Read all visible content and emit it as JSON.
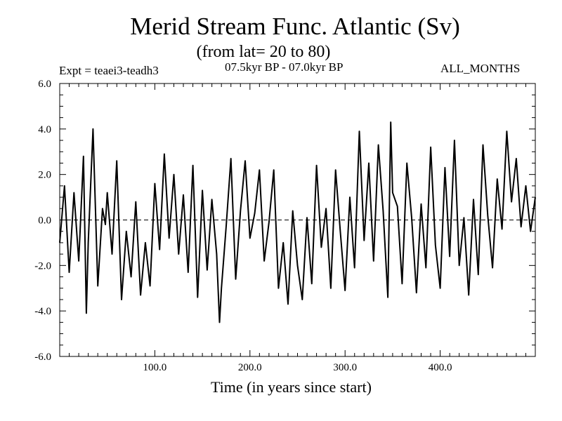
{
  "chart_data": {
    "type": "line",
    "title": "Merid Stream Func. Atlantic (Sv)",
    "subtitle": "(from lat= 20 to 80)",
    "experiment_label": "Expt = teaei3-teadh3",
    "period_label": "07.5kyr BP - 07.0kyr BP",
    "months_label": "ALL_MONTHS",
    "xlabel": "Time (in years since start)",
    "ylabel": "",
    "xlim": [
      0,
      500
    ],
    "ylim": [
      -6.0,
      6.0
    ],
    "xticks": [
      100,
      200,
      300,
      400
    ],
    "xtick_labels": [
      "100.0",
      "200.0",
      "300.0",
      "400.0"
    ],
    "yticks": [
      -6,
      -4,
      -2,
      0,
      2,
      4,
      6
    ],
    "ytick_labels": [
      "-6.0",
      "-4.0",
      "-2.0",
      "0.0",
      "2.0",
      "4.0",
      "6.0"
    ],
    "zero_line": true,
    "series": [
      {
        "name": "Merid Stream Func. Atlantic",
        "x": [
          0,
          5,
          10,
          15,
          20,
          25,
          28,
          30,
          35,
          40,
          45,
          48,
          50,
          55,
          60,
          65,
          70,
          75,
          80,
          85,
          90,
          95,
          100,
          105,
          110,
          115,
          120,
          125,
          130,
          135,
          140,
          145,
          150,
          155,
          160,
          165,
          168,
          170,
          175,
          180,
          185,
          190,
          195,
          200,
          205,
          210,
          215,
          220,
          225,
          230,
          235,
          240,
          245,
          250,
          255,
          260,
          265,
          270,
          275,
          280,
          285,
          290,
          295,
          300,
          305,
          310,
          315,
          320,
          325,
          330,
          335,
          340,
          345,
          348,
          350,
          355,
          360,
          365,
          370,
          375,
          380,
          385,
          390,
          395,
          400,
          405,
          410,
          415,
          420,
          425,
          430,
          435,
          440,
          445,
          450,
          455,
          460,
          465,
          470,
          475,
          480,
          485,
          490,
          495,
          500
        ],
        "y": [
          -1.0,
          1.5,
          -2.3,
          1.2,
          -1.8,
          2.8,
          -4.1,
          -1.0,
          4.0,
          -2.9,
          0.5,
          -0.2,
          1.2,
          -1.5,
          2.6,
          -3.5,
          -0.5,
          -2.5,
          0.8,
          -3.3,
          -1.0,
          -2.9,
          1.6,
          -1.3,
          2.9,
          -0.8,
          2.0,
          -1.5,
          1.1,
          -2.3,
          2.4,
          -3.4,
          1.3,
          -2.2,
          0.9,
          -1.5,
          -4.5,
          -3.0,
          -0.3,
          2.7,
          -2.6,
          0.4,
          2.6,
          -0.8,
          0.3,
          2.2,
          -1.8,
          -0.1,
          2.2,
          -3.0,
          -1.0,
          -3.7,
          0.4,
          -2.0,
          -3.5,
          0.1,
          -2.8,
          2.4,
          -1.2,
          0.5,
          -3.0,
          2.2,
          -0.5,
          -3.1,
          1.0,
          -2.1,
          3.9,
          -0.9,
          2.5,
          -1.8,
          3.3,
          0.4,
          -3.4,
          4.3,
          1.2,
          0.6,
          -2.8,
          2.5,
          0.1,
          -3.2,
          0.7,
          -2.1,
          3.2,
          -1.1,
          -3.0,
          2.3,
          -1.6,
          3.5,
          -2.0,
          0.1,
          -3.3,
          0.9,
          -2.4,
          3.3,
          0.2,
          -2.1,
          1.8,
          -0.4,
          3.9,
          0.8,
          2.7,
          -0.3,
          1.5,
          -0.5,
          1.0
        ]
      }
    ]
  }
}
